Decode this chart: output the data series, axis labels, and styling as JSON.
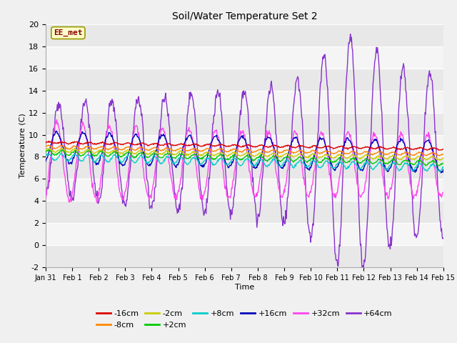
{
  "title": "Soil/Water Temperature Set 2",
  "xlabel": "Time",
  "ylabel": "Temperature (C)",
  "ylim": [
    -2,
    20
  ],
  "yticks": [
    -2,
    0,
    2,
    4,
    6,
    8,
    10,
    12,
    14,
    16,
    18,
    20
  ],
  "annotation_text": "EE_met",
  "annotation_bg": "#ffffcc",
  "annotation_border": "#999900",
  "series_names": [
    "-16cm",
    "-8cm",
    "-2cm",
    "+2cm",
    "+8cm",
    "+16cm",
    "+32cm",
    "+64cm"
  ],
  "series_colors": [
    "#dd0000",
    "#ff8800",
    "#cccc00",
    "#00cc00",
    "#00cccc",
    "#0000bb",
    "#ff44ee",
    "#8833cc"
  ],
  "legend_row1": [
    "-16cm",
    "-8cm",
    "-2cm",
    "+2cm",
    "+8cm",
    "+16cm"
  ],
  "legend_row2": [
    "+32cm",
    "+64cm"
  ],
  "num_days": 15,
  "samples_per_day": 48,
  "band_colors": [
    "#e8e8e8",
    "#f5f5f5"
  ]
}
